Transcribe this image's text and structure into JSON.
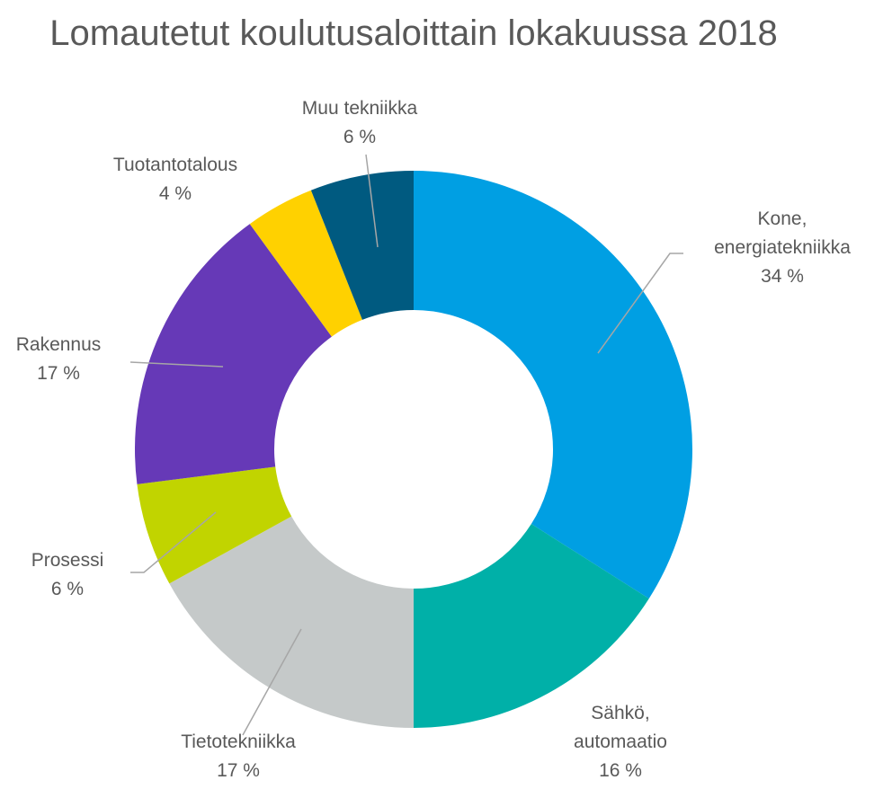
{
  "chart_data": {
    "type": "donut",
    "title": "Lomautetut koulutusaloittain lokakuussa 2018",
    "categories": [
      "Kone, energiatekniikka",
      "Sähkö, automaatio",
      "Tietotekniikka",
      "Prosessi",
      "Rakennus",
      "Tuotantotalous",
      "Muu tekniikka"
    ],
    "values": [
      34,
      16,
      17,
      6,
      17,
      4,
      6
    ],
    "value_labels": [
      "34 %",
      "16 %",
      "17 %",
      "6 %",
      "17 %",
      "4 %",
      "6 %"
    ],
    "colors": [
      "#009fe3",
      "#00b0a8",
      "#c5c9c9",
      "#c1d400",
      "#6639b7",
      "#ffd100",
      "#005a80"
    ]
  }
}
